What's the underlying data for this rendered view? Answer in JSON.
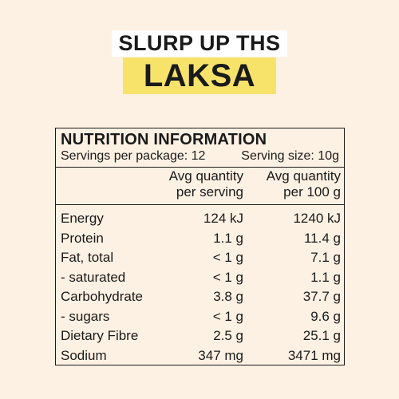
{
  "title_line1": "SLURP UP THS",
  "title_line2": "LAKSA",
  "colors": {
    "background": "#fdf1e3",
    "title_line1_bg": "#ffffff",
    "title_line2_bg": "#f7e36a",
    "text": "#1a1a1a"
  },
  "nutrition": {
    "heading": "NUTRITION INFORMATION",
    "servings_per_package": "Servings per package: 12",
    "serving_size": "Serving size: 10g",
    "col_serving_line1": "Avg quantity",
    "col_serving_line2": "per serving",
    "col_100_line1": "Avg quantity",
    "col_100_line2": "per 100 g",
    "rows": [
      {
        "label": "Energy",
        "serving": "124 kJ",
        "per100": "1240 kJ"
      },
      {
        "label": "Protein",
        "serving": "1.1 g",
        "per100": "11.4 g"
      },
      {
        "label": "Fat, total",
        "serving": "< 1 g",
        "per100": "7.1 g"
      },
      {
        "label": "- saturated",
        "serving": "< 1 g",
        "per100": "1.1 g"
      },
      {
        "label": "Carbohydrate",
        "serving": "3.8 g",
        "per100": "37.7 g"
      },
      {
        "label": "- sugars",
        "serving": "< 1 g",
        "per100": "9.6 g"
      },
      {
        "label": "Dietary Fibre",
        "serving": "2.5 g",
        "per100": "25.1 g"
      },
      {
        "label": "Sodium",
        "serving": "347 mg",
        "per100": "3471 mg"
      }
    ]
  }
}
